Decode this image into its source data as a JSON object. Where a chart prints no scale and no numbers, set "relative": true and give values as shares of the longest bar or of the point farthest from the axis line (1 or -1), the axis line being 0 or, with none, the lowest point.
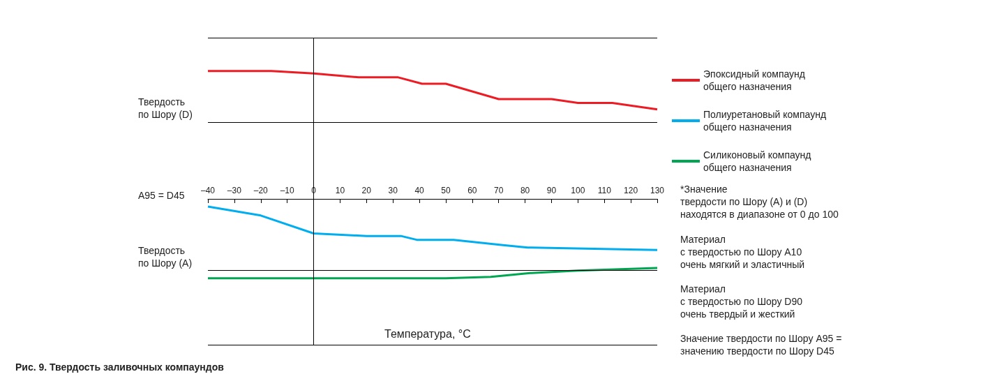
{
  "chart_data": {
    "type": "line",
    "relative": true,
    "title": "Рис. 9. Твердость заливочных компаундов",
    "xlabel": "Температура, °C",
    "xlim": [
      -40,
      130
    ],
    "xticks": [
      {
        "value": -40,
        "label": "–40"
      },
      {
        "value": -30,
        "label": "–30"
      },
      {
        "value": -20,
        "label": "–20"
      },
      {
        "value": -10,
        "label": "–10"
      },
      0,
      10,
      20,
      30,
      40,
      50,
      60,
      70,
      80,
      90,
      100,
      110,
      120,
      130
    ],
    "series": [
      {
        "name": "Эпоксидный компаунд\nобщего назначения",
        "color": "#ed1c24",
        "x": [
          -40,
          -16,
          0,
          17,
          32,
          41,
          50,
          70,
          90,
          100,
          113,
          130
        ],
        "values": [
          1,
          1,
          0.98,
          0.95,
          0.95,
          0.9,
          0.9,
          0.78,
          0.78,
          0.75,
          0.75,
          0.7
        ]
      },
      {
        "name": "Полиуретановый компаунд\nобщего назначения",
        "color": "#00aeef",
        "x": [
          -40,
          -20,
          0,
          20,
          33,
          39,
          53,
          71,
          81,
          130
        ],
        "values": [
          -0.06,
          -0.13,
          -0.27,
          -0.29,
          -0.29,
          -0.32,
          -0.32,
          -0.36,
          -0.38,
          -0.4
        ]
      },
      {
        "name": "Силиконовый компаунд\nобщего назначения",
        "color": "#00a651",
        "x": [
          -40,
          50,
          67,
          82,
          100,
          130
        ],
        "values": [
          -0.62,
          -0.62,
          -0.61,
          -0.58,
          -0.56,
          -0.54
        ]
      }
    ],
    "ref_lines": [
      {
        "axis": "y",
        "value": 1.26,
        "color": "#000000"
      },
      {
        "axis": "y",
        "value": 0.6,
        "label": "Твердость\nпо Шору (D)",
        "color": "#000000"
      },
      {
        "axis": "y",
        "value": -0.56,
        "label": "Твердость\nпо Шору (A)",
        "color": "#000000"
      },
      {
        "axis": "y",
        "value": -1.14,
        "color": "#000000"
      },
      {
        "axis": "x",
        "value": 0,
        "color": "#000000"
      }
    ],
    "annotations": [
      "A95 = D45",
      "*Значение\nтвердости по Шору (A) и (D)\nнаходятся в диапазоне от 0 до 100",
      "Материал\nс твердостью по Шору A10\nочень мягкий и эластичный",
      "Материал\nс твердостью по Шору D90\nочень твердый и жесткий",
      "Значение твердости по Шору A95 =\nзначению твердости по Шору D45"
    ],
    "legend": "right",
    "grid": false,
    "marker": "none",
    "line_style": "solid"
  }
}
